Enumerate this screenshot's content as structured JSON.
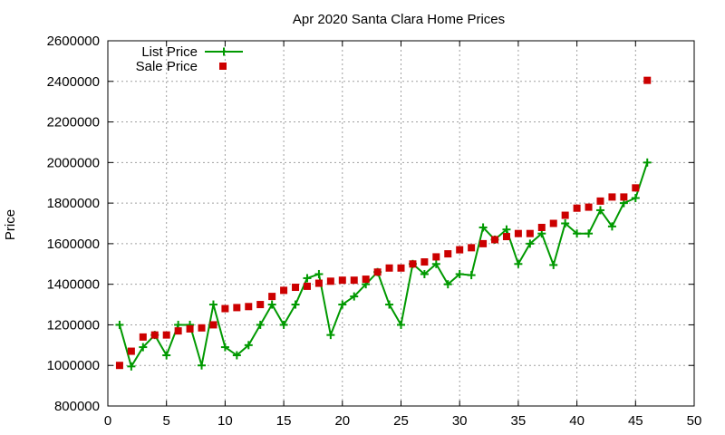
{
  "chart_data": {
    "type": "line",
    "title": "Apr 2020 Santa Clara Home Prices",
    "xlabel": "",
    "ylabel": "Price",
    "xlim": [
      0,
      50
    ],
    "ylim": [
      800000,
      2600000
    ],
    "x_ticks": [
      "0",
      "5",
      "10",
      "15",
      "20",
      "25",
      "30",
      "35",
      "40",
      "45",
      "50"
    ],
    "y_ticks": [
      "800000",
      "1000000",
      "1200000",
      "1400000",
      "1600000",
      "1800000",
      "2000000",
      "2200000",
      "2400000",
      "2600000"
    ],
    "grid": true,
    "legend_position": "top-left",
    "series": [
      {
        "name": "List Price",
        "style": "line-plus",
        "color": "#009900",
        "x": [
          1,
          2,
          3,
          4,
          5,
          6,
          7,
          8,
          9,
          10,
          11,
          12,
          13,
          14,
          15,
          16,
          17,
          18,
          19,
          20,
          21,
          22,
          23,
          24,
          25,
          26,
          27,
          28,
          29,
          30,
          31,
          32,
          33,
          34,
          35,
          36,
          37,
          38,
          39,
          40,
          41,
          42,
          43,
          44,
          45,
          46
        ],
        "values": [
          1200000,
          995000,
          1090000,
          1150000,
          1050000,
          1200000,
          1200000,
          1000000,
          1300000,
          1090000,
          1050000,
          1100000,
          1200000,
          1300000,
          1200000,
          1300000,
          1430000,
          1450000,
          1150000,
          1300000,
          1340000,
          1400000,
          1460000,
          1300000,
          1200000,
          1500000,
          1450000,
          1500000,
          1400000,
          1450000,
          1445000,
          1680000,
          1620000,
          1670000,
          1500000,
          1600000,
          1650000,
          1495000,
          1700000,
          1650000,
          1650000,
          1765000,
          1685000,
          1800000,
          1825000,
          2000000
        ]
      },
      {
        "name": "Sale Price",
        "style": "square-markers",
        "color": "#cc0000",
        "x": [
          1,
          2,
          3,
          4,
          5,
          6,
          7,
          8,
          9,
          10,
          11,
          12,
          13,
          14,
          15,
          16,
          17,
          18,
          19,
          20,
          21,
          22,
          23,
          24,
          25,
          26,
          27,
          28,
          29,
          30,
          31,
          32,
          33,
          34,
          35,
          36,
          37,
          38,
          39,
          40,
          41,
          42,
          43,
          44,
          45,
          46
        ],
        "values": [
          1000000,
          1070000,
          1140000,
          1150000,
          1150000,
          1170000,
          1180000,
          1185000,
          1200000,
          1280000,
          1285000,
          1290000,
          1300000,
          1340000,
          1370000,
          1385000,
          1390000,
          1405000,
          1415000,
          1420000,
          1420000,
          1425000,
          1460000,
          1480000,
          1480000,
          1500000,
          1510000,
          1535000,
          1550000,
          1570000,
          1580000,
          1600000,
          1620000,
          1635000,
          1650000,
          1650000,
          1680000,
          1700000,
          1740000,
          1775000,
          1780000,
          1810000,
          1830000,
          1830000,
          1875000,
          2405000
        ]
      }
    ]
  }
}
